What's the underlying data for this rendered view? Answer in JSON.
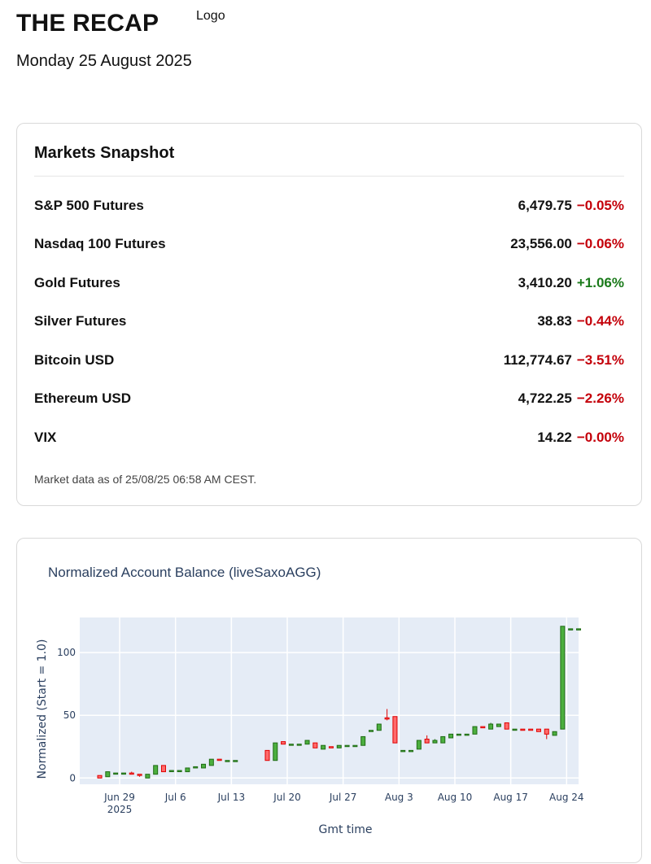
{
  "header": {
    "brand": "THE RECAP",
    "logo_text": "Logo",
    "date": "Monday 25 August 2025"
  },
  "snapshot": {
    "title": "Markets Snapshot",
    "rows": [
      {
        "name": "S&P 500 Futures",
        "value": "6,479.75",
        "change": "−0.05%",
        "direction": "down"
      },
      {
        "name": "Nasdaq 100 Futures",
        "value": "23,556.00",
        "change": "−0.06%",
        "direction": "down"
      },
      {
        "name": "Gold Futures",
        "value": "3,410.20",
        "change": "+1.06%",
        "direction": "up"
      },
      {
        "name": "Silver Futures",
        "value": "38.83",
        "change": "−0.44%",
        "direction": "down"
      },
      {
        "name": "Bitcoin USD",
        "value": "112,774.67",
        "change": "−3.51%",
        "direction": "down"
      },
      {
        "name": "Ethereum USD",
        "value": "4,722.25",
        "change": "−2.26%",
        "direction": "down"
      },
      {
        "name": "VIX",
        "value": "14.22",
        "change": "−0.00%",
        "direction": "down"
      }
    ],
    "as_of": "Market data as of 25/08/25 06:58 AM CEST."
  },
  "colors": {
    "negative": "#c4000a",
    "positive": "#1a7a1a",
    "plot_bg": "#e5ecf6",
    "candle_up": "#3d9a2a",
    "candle_down": "#ff3b3b"
  },
  "chart_data": {
    "type": "candlestick",
    "title": "Normalized Account Balance (liveSaxoAGG)",
    "xlabel": "Gmt time",
    "ylabel": "Normalized (Start = 1.0)",
    "x_ticks": [
      "Jun 29\n2025",
      "Jul 6",
      "Jul 13",
      "Jul 20",
      "Jul 27",
      "Aug 3",
      "Aug 10",
      "Aug 17",
      "Aug 24"
    ],
    "y_ticks": [
      0,
      50,
      100
    ],
    "ylim": [
      -5,
      128
    ],
    "grid": true,
    "candles": [
      {
        "date": "2025-06-26",
        "open": 2,
        "close": 0,
        "high": 2,
        "low": 0
      },
      {
        "date": "2025-06-27",
        "open": 1,
        "close": 5,
        "high": 5,
        "low": 1
      },
      {
        "date": "2025-06-28",
        "open": 4,
        "close": 4,
        "high": 4,
        "low": 4
      },
      {
        "date": "2025-06-29",
        "open": 4,
        "close": 4,
        "high": 4,
        "low": 4
      },
      {
        "date": "2025-06-30",
        "open": 4,
        "close": 3,
        "high": 5,
        "low": 3
      },
      {
        "date": "2025-07-01",
        "open": 3,
        "close": 2,
        "high": 3,
        "low": 1
      },
      {
        "date": "2025-07-02",
        "open": 0,
        "close": 3,
        "high": 3,
        "low": 0
      },
      {
        "date": "2025-07-03",
        "open": 3,
        "close": 10,
        "high": 10,
        "low": 3
      },
      {
        "date": "2025-07-04",
        "open": 10,
        "close": 5,
        "high": 10,
        "low": 5
      },
      {
        "date": "2025-07-05",
        "open": 6,
        "close": 6,
        "high": 6,
        "low": 6
      },
      {
        "date": "2025-07-06",
        "open": 6,
        "close": 6,
        "high": 6,
        "low": 6
      },
      {
        "date": "2025-07-07",
        "open": 5,
        "close": 8,
        "high": 8,
        "low": 5
      },
      {
        "date": "2025-07-08",
        "open": 8,
        "close": 9,
        "high": 9,
        "low": 8
      },
      {
        "date": "2025-07-09",
        "open": 8,
        "close": 11,
        "high": 11,
        "low": 8
      },
      {
        "date": "2025-07-10",
        "open": 10,
        "close": 15,
        "high": 15,
        "low": 10
      },
      {
        "date": "2025-07-11",
        "open": 15,
        "close": 14,
        "high": 15,
        "low": 14
      },
      {
        "date": "2025-07-12",
        "open": 14,
        "close": 14,
        "high": 14,
        "low": 14
      },
      {
        "date": "2025-07-13",
        "open": 14,
        "close": 14,
        "high": 14,
        "low": 14
      },
      {
        "date": "2025-07-17",
        "open": 22,
        "close": 14,
        "high": 22,
        "low": 14
      },
      {
        "date": "2025-07-18",
        "open": 14,
        "close": 28,
        "high": 28,
        "low": 14
      },
      {
        "date": "2025-07-19",
        "open": 29,
        "close": 27,
        "high": 29,
        "low": 27
      },
      {
        "date": "2025-07-20",
        "open": 27,
        "close": 27,
        "high": 27,
        "low": 27
      },
      {
        "date": "2025-07-21",
        "open": 27,
        "close": 27,
        "high": 27,
        "low": 27
      },
      {
        "date": "2025-07-22",
        "open": 27,
        "close": 30,
        "high": 30,
        "low": 27
      },
      {
        "date": "2025-07-23",
        "open": 28,
        "close": 24,
        "high": 28,
        "low": 24
      },
      {
        "date": "2025-07-24",
        "open": 23,
        "close": 26,
        "high": 26,
        "low": 23
      },
      {
        "date": "2025-07-25",
        "open": 25,
        "close": 24,
        "high": 25,
        "low": 24
      },
      {
        "date": "2025-07-26",
        "open": 24,
        "close": 26,
        "high": 26,
        "low": 24
      },
      {
        "date": "2025-07-27",
        "open": 26,
        "close": 26,
        "high": 26,
        "low": 26
      },
      {
        "date": "2025-07-28",
        "open": 26,
        "close": 26,
        "high": 26,
        "low": 26
      },
      {
        "date": "2025-07-29",
        "open": 26,
        "close": 33,
        "high": 33,
        "low": 26
      },
      {
        "date": "2025-07-30",
        "open": 38,
        "close": 38,
        "high": 38,
        "low": 38
      },
      {
        "date": "2025-07-31",
        "open": 38,
        "close": 43,
        "high": 43,
        "low": 38
      },
      {
        "date": "2025-08-01",
        "open": 48,
        "close": 47,
        "high": 55,
        "low": 46
      },
      {
        "date": "2025-08-02",
        "open": 49,
        "close": 28,
        "high": 49,
        "low": 28
      },
      {
        "date": "2025-08-03",
        "open": 22,
        "close": 22,
        "high": 22,
        "low": 22
      },
      {
        "date": "2025-08-04",
        "open": 22,
        "close": 22,
        "high": 22,
        "low": 22
      },
      {
        "date": "2025-08-05",
        "open": 23,
        "close": 30,
        "high": 30,
        "low": 23
      },
      {
        "date": "2025-08-06",
        "open": 31,
        "close": 28,
        "high": 34,
        "low": 28
      },
      {
        "date": "2025-08-07",
        "open": 28,
        "close": 30,
        "high": 31,
        "low": 28
      },
      {
        "date": "2025-08-08",
        "open": 28,
        "close": 33,
        "high": 33,
        "low": 28
      },
      {
        "date": "2025-08-09",
        "open": 32,
        "close": 35,
        "high": 35,
        "low": 32
      },
      {
        "date": "2025-08-10",
        "open": 35,
        "close": 35,
        "high": 35,
        "low": 35
      },
      {
        "date": "2025-08-11",
        "open": 35,
        "close": 35,
        "high": 35,
        "low": 35
      },
      {
        "date": "2025-08-12",
        "open": 35,
        "close": 41,
        "high": 41,
        "low": 35
      },
      {
        "date": "2025-08-13",
        "open": 41,
        "close": 40,
        "high": 41,
        "low": 40
      },
      {
        "date": "2025-08-14",
        "open": 39,
        "close": 43,
        "high": 44,
        "low": 39
      },
      {
        "date": "2025-08-15",
        "open": 41,
        "close": 43,
        "high": 43,
        "low": 41
      },
      {
        "date": "2025-08-16",
        "open": 44,
        "close": 39,
        "high": 44,
        "low": 39
      },
      {
        "date": "2025-08-17",
        "open": 39,
        "close": 39,
        "high": 39,
        "low": 39
      },
      {
        "date": "2025-08-18",
        "open": 39,
        "close": 38,
        "high": 39,
        "low": 38
      },
      {
        "date": "2025-08-19",
        "open": 39,
        "close": 38,
        "high": 39,
        "low": 38
      },
      {
        "date": "2025-08-20",
        "open": 39,
        "close": 37,
        "high": 39,
        "low": 37
      },
      {
        "date": "2025-08-21",
        "open": 39,
        "close": 35,
        "high": 39,
        "low": 31
      },
      {
        "date": "2025-08-22",
        "open": 34,
        "close": 37,
        "high": 37,
        "low": 34
      },
      {
        "date": "2025-08-23",
        "open": 39,
        "close": 121,
        "high": 121,
        "low": 39
      },
      {
        "date": "2025-08-24",
        "open": 119,
        "close": 119,
        "high": 119,
        "low": 119
      },
      {
        "date": "2025-08-25",
        "open": 119,
        "close": 119,
        "high": 119,
        "low": 119
      }
    ]
  }
}
